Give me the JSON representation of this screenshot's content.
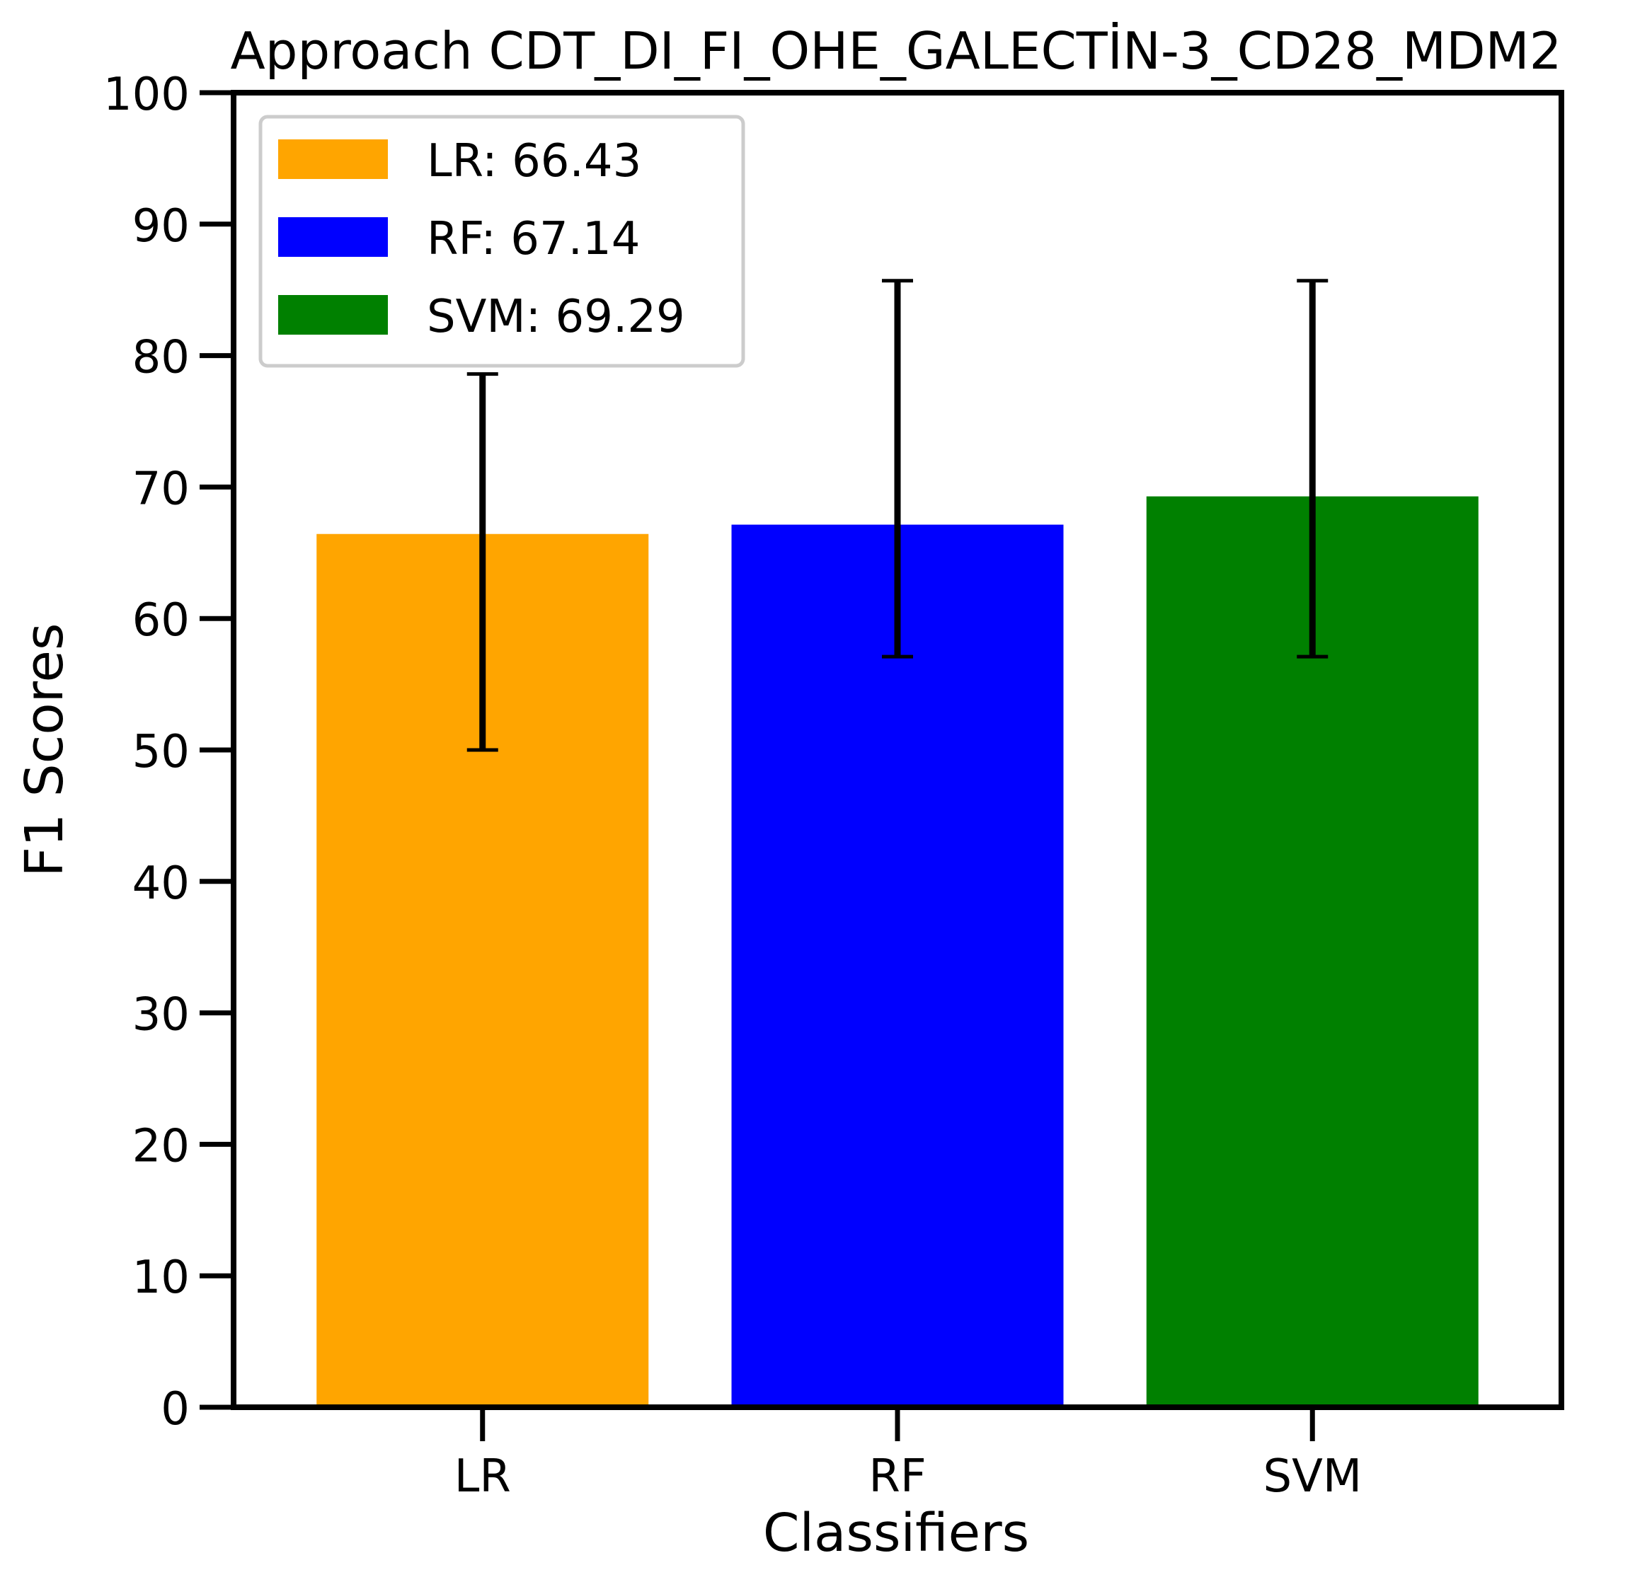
{
  "chart_data": {
    "type": "bar",
    "title": "Approach CDT_DI_FI_OHE_GALECTİN-3_CD28_MDM2",
    "xlabel": "Classifiers",
    "ylabel": "F1 Scores",
    "categories": [
      "LR",
      "RF",
      "SVM"
    ],
    "values": [
      66.43,
      67.14,
      69.29
    ],
    "error_bars": [
      {
        "low": 50.0,
        "high": 78.6
      },
      {
        "low": 57.1,
        "high": 85.7
      },
      {
        "low": 57.1,
        "high": 85.7
      }
    ],
    "colors": [
      "#FFA500",
      "#0000FF",
      "#008000"
    ],
    "ylim": [
      0,
      100
    ],
    "yticks": [
      0,
      10,
      20,
      30,
      40,
      50,
      60,
      70,
      80,
      90,
      100
    ],
    "grid": false,
    "legend": {
      "placement": "top-left",
      "entries": [
        "LR: 66.43",
        "RF: 67.14",
        "SVM: 69.29"
      ]
    }
  }
}
